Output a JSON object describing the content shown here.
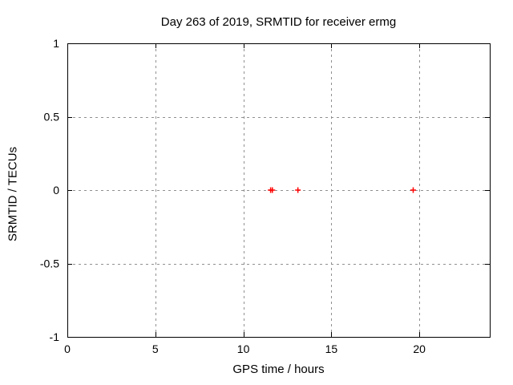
{
  "chart_data": {
    "type": "scatter",
    "title": "Day 263 of 2019, SRMTID for receiver ermg",
    "xlabel": "GPS time / hours",
    "ylabel": "SRMTID / TECUs",
    "xlim": [
      0,
      24
    ],
    "ylim": [
      -1,
      1
    ],
    "xticks": [
      0,
      5,
      10,
      15,
      20
    ],
    "yticks": [
      -1,
      -0.5,
      0,
      0.5,
      1
    ],
    "grid": true,
    "legend_position": "none",
    "background_color": "#ffffff",
    "text_color": "#000000",
    "grid_color": "#909090",
    "border_color": "#000000",
    "marker_color": "#ff0000",
    "series": [
      {
        "name": "SRMTID",
        "marker": "plus",
        "color": "#ff0000",
        "x": [
          11.55,
          11.65,
          13.1,
          19.65
        ],
        "y": [
          0,
          0,
          0,
          0
        ]
      }
    ]
  }
}
